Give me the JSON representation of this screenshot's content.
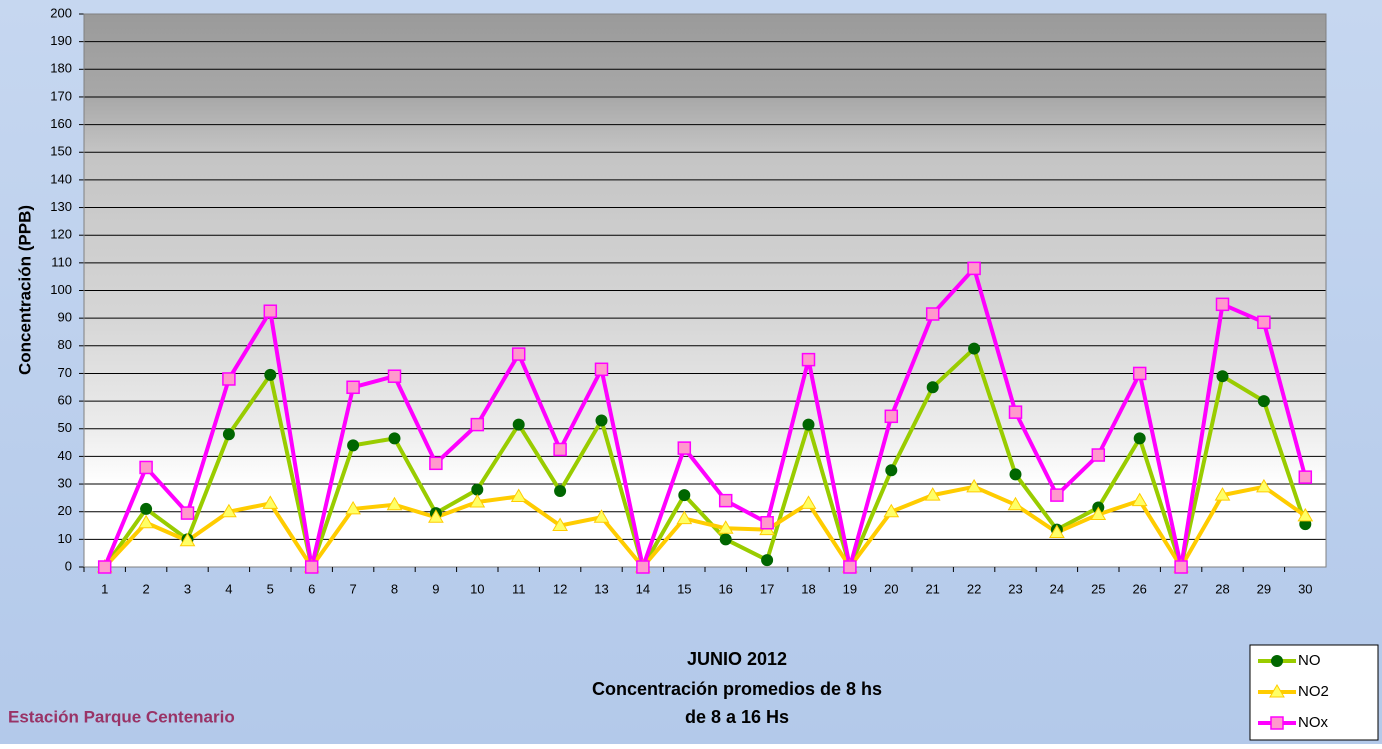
{
  "chart_data": {
    "type": "line",
    "title_lines": [
      "JUNIO 2012",
      "Concentración promedios de 8 hs",
      "de 8 a 16 Hs"
    ],
    "station": "Estación Parque Centenario",
    "y_label": "Concentración (PPB)",
    "categories": [
      "1",
      "2",
      "3",
      "4",
      "5",
      "6",
      "7",
      "8",
      "9",
      "10",
      "11",
      "12",
      "13",
      "14",
      "15",
      "16",
      "17",
      "18",
      "19",
      "20",
      "21",
      "22",
      "23",
      "24",
      "25",
      "26",
      "27",
      "28",
      "29",
      "30"
    ],
    "series": [
      {
        "name": "NO",
        "color": "#99cc00",
        "marker": "circle",
        "marker_color": "#006600",
        "values": [
          0,
          21,
          10,
          48,
          69.5,
          0,
          44,
          46.5,
          19.5,
          28,
          51.5,
          27.5,
          53,
          0,
          26,
          10,
          2.5,
          51.5,
          0,
          35,
          65,
          79,
          33.5,
          13.5,
          21.5,
          46.5,
          0,
          69,
          60,
          15.5
        ]
      },
      {
        "name": "NO2",
        "color": "#ffcc00",
        "marker": "triangle",
        "marker_color": "#ffff66",
        "values": [
          0,
          16,
          9.5,
          20,
          23,
          0,
          21,
          22.5,
          18,
          23.5,
          25.5,
          15,
          18,
          0,
          17.5,
          14,
          13.5,
          23,
          0,
          20,
          26,
          29,
          22.5,
          12.5,
          19,
          24,
          0,
          26,
          29,
          18.5
        ]
      },
      {
        "name": "NOx",
        "color": "#ff00ff",
        "marker": "square",
        "marker_color": "#ff99cc",
        "values": [
          0,
          36,
          19.5,
          68,
          92.5,
          0,
          65,
          69,
          37.5,
          51.5,
          77,
          42.5,
          71.5,
          0,
          43,
          24,
          16,
          75,
          0,
          54.5,
          91.5,
          108,
          56,
          26,
          40.5,
          70,
          0,
          95,
          88.5,
          32.5
        ]
      }
    ],
    "ylim": [
      0,
      200
    ],
    "yticks": [
      0,
      10,
      20,
      30,
      40,
      50,
      60,
      70,
      80,
      90,
      100,
      110,
      120,
      130,
      140,
      150,
      160,
      170,
      180,
      190,
      200
    ],
    "grid": true,
    "legend": "bottom-right"
  }
}
